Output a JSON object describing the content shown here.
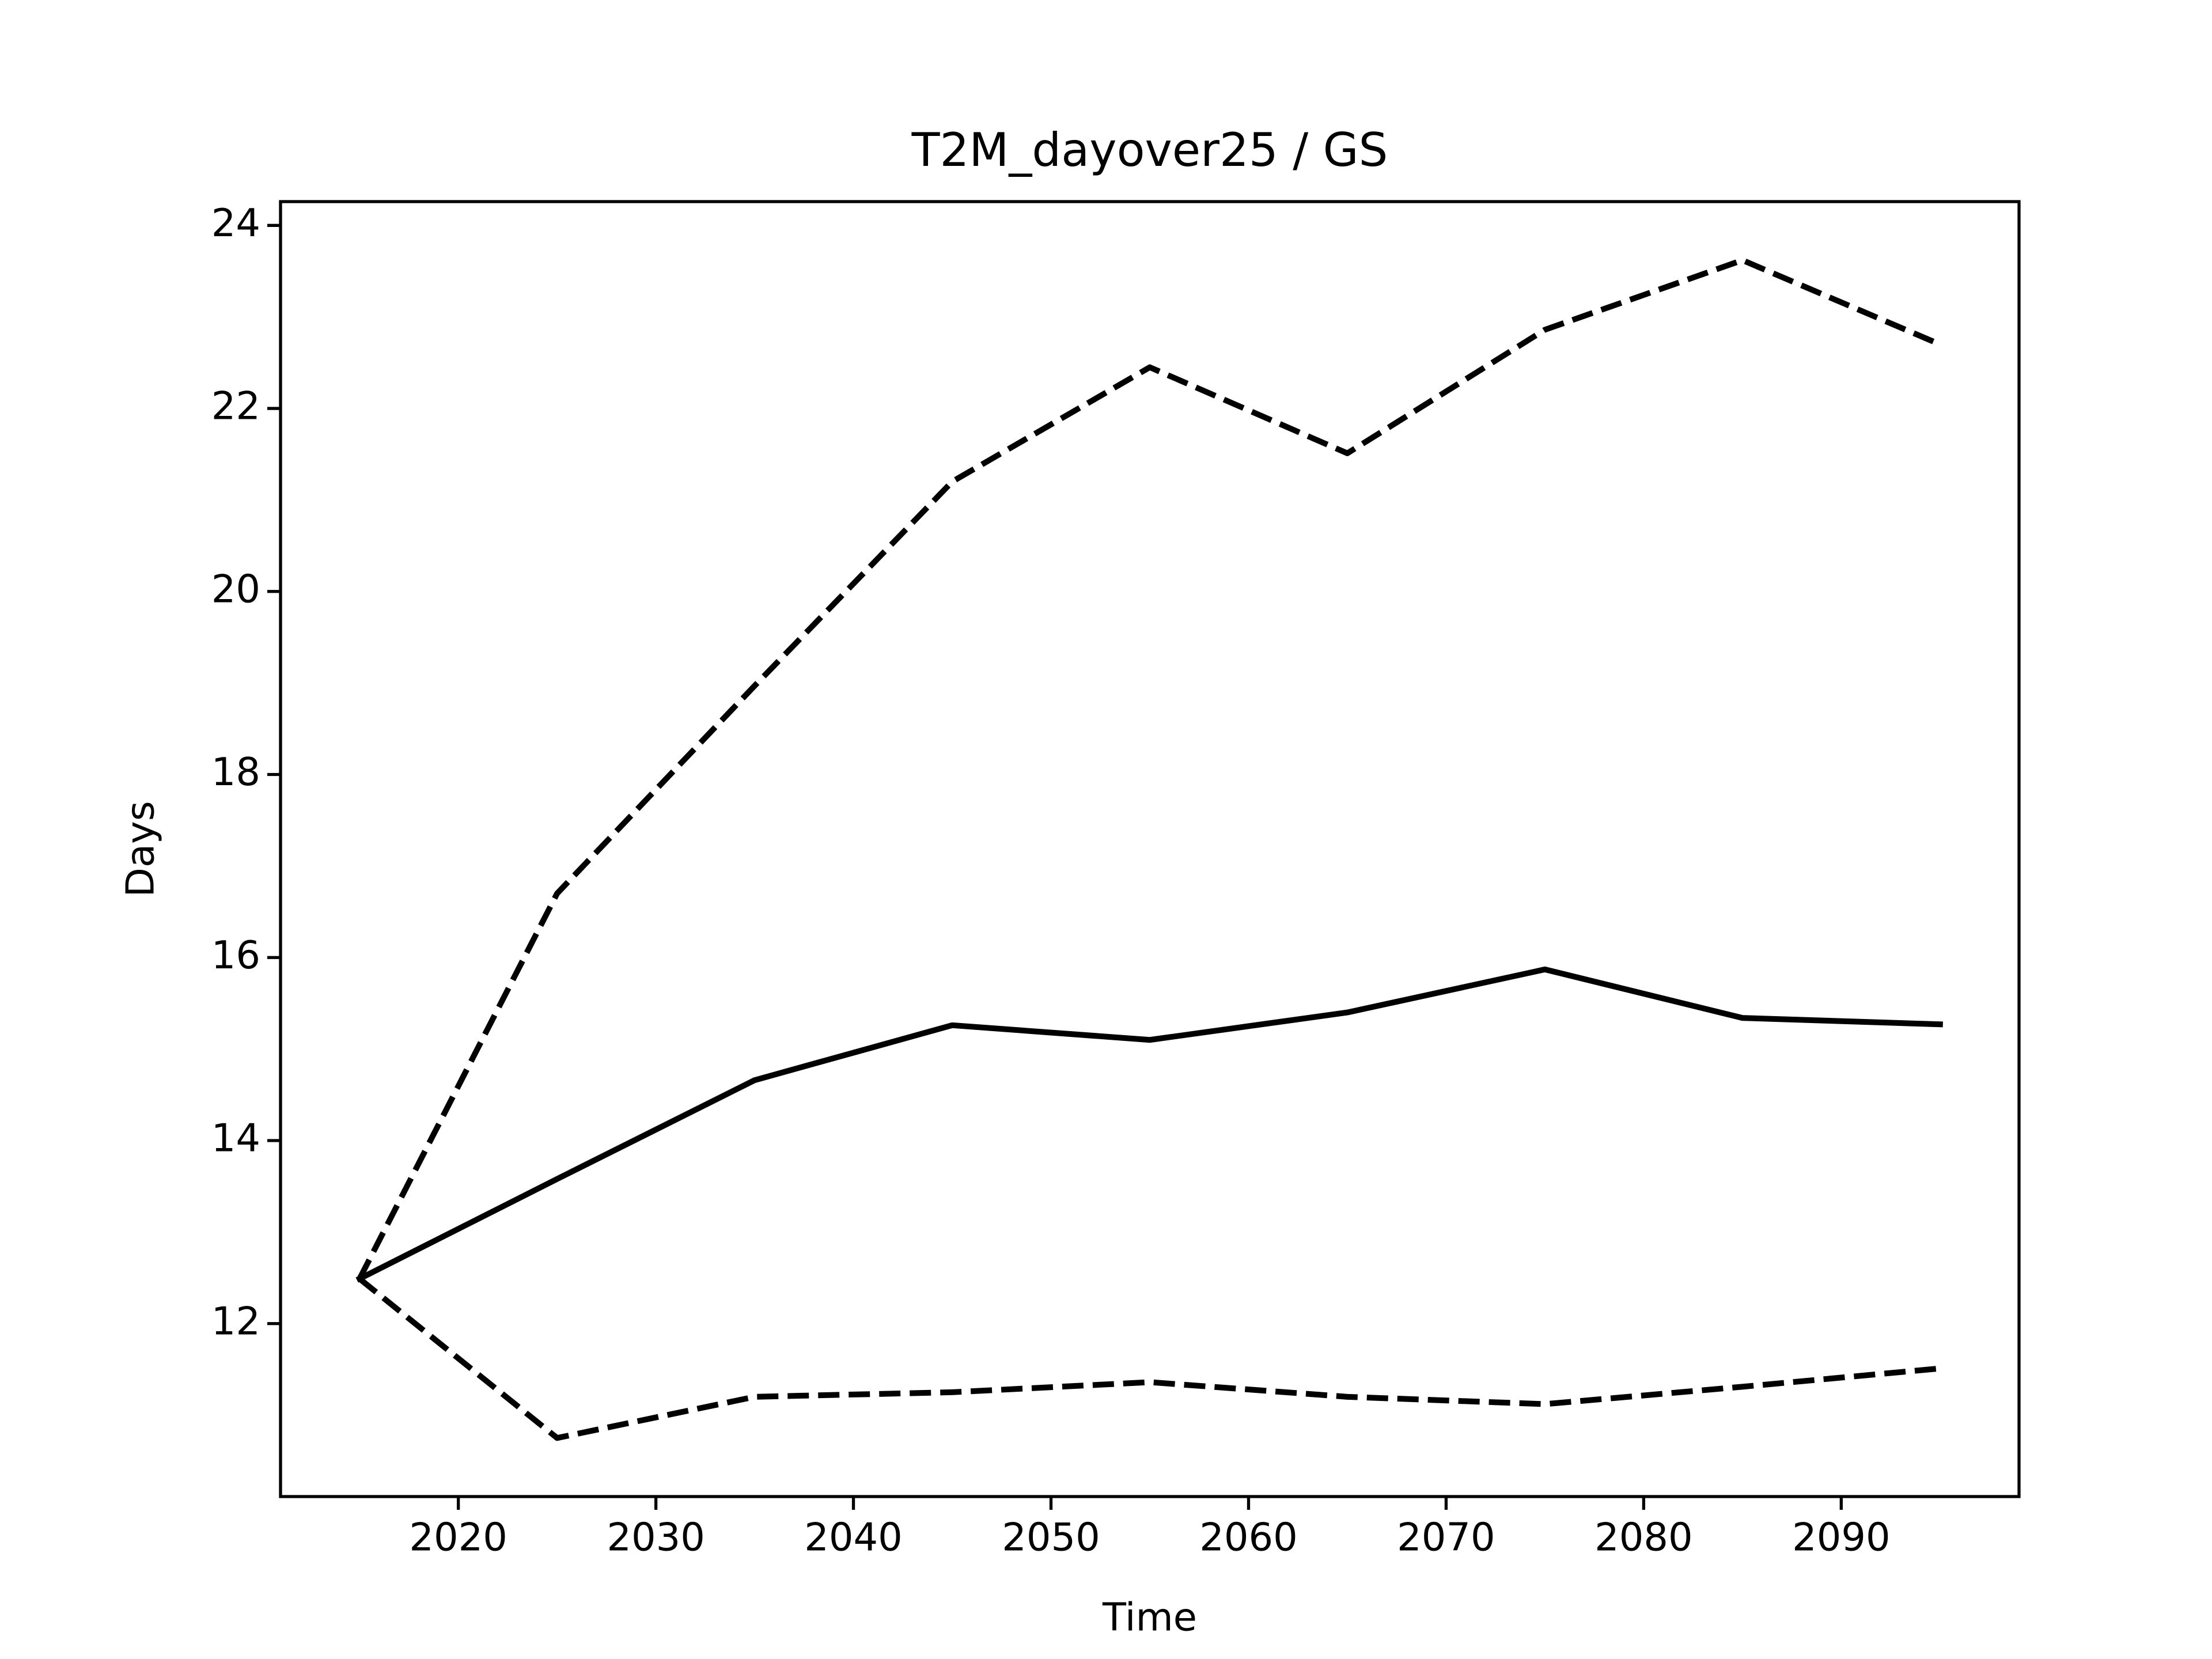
{
  "chart_data": {
    "type": "line",
    "title": "T2M_dayover25 / GS",
    "xlabel": "Time",
    "ylabel": "Days",
    "x": [
      2015,
      2025,
      2035,
      2045,
      2055,
      2065,
      2075,
      2085,
      2095
    ],
    "series": [
      {
        "color": "#000000",
        "linestyle": "solid",
        "values": [
          12.49,
          13.58,
          14.66,
          15.26,
          15.1,
          15.4,
          15.87,
          15.34,
          15.27
        ]
      },
      {
        "color": "#000000",
        "linestyle": "dashed",
        "values": [
          12.49,
          16.7,
          18.97,
          21.2,
          22.45,
          21.51,
          22.86,
          23.62,
          22.7
        ]
      },
      {
        "color": "#000000",
        "linestyle": "dashed",
        "values": [
          12.49,
          10.75,
          11.2,
          11.25,
          11.36,
          11.2,
          11.12,
          11.31,
          11.51
        ]
      }
    ],
    "xlim": [
      2011,
      2099
    ],
    "xticks": [
      2020,
      2030,
      2040,
      2050,
      2060,
      2070,
      2080,
      2090
    ],
    "ylim": [
      10.11,
      24.26
    ],
    "yticks": [
      12,
      14,
      16,
      18,
      20,
      22,
      24
    ],
    "grid": false
  }
}
